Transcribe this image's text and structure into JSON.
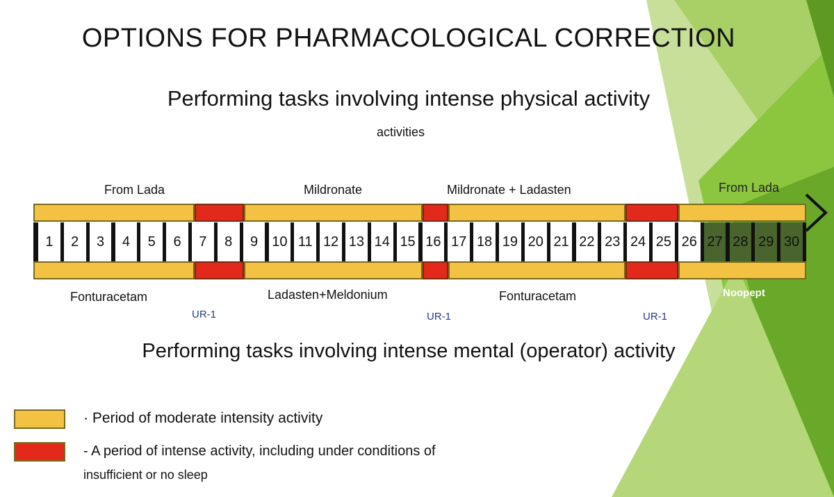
{
  "slide": {
    "title": "OPTIONS FOR PHARMACOLOGICAL CORRECTION",
    "physical_heading": "Performing tasks involving intense physical activity",
    "physical_subheading": "activities",
    "mental_heading": "Performing tasks involving intense mental (operator) activity"
  },
  "timeline": {
    "days": [
      "1",
      "2",
      "3",
      "4",
      "5",
      "6",
      "7",
      "8",
      "9",
      "10",
      "11",
      "12",
      "13",
      "14",
      "15",
      "16",
      "17",
      "18",
      "19",
      "20",
      "21",
      "22",
      "23",
      "24",
      "25",
      "26",
      "27",
      "28",
      "29",
      "30"
    ],
    "physical_labels": {
      "from_lada_left": "From Lada",
      "mildronate": "Mildronate",
      "mildronate_ladasten": "Mildronate + Ladasten",
      "from_lada_right": "From Lada"
    },
    "mental_labels": {
      "fonturacetam_left": "Fonturacetam",
      "ladasten_meldonium": "Ladasten+Meldonium",
      "fonturacetam_right": "Fonturacetam",
      "noopept": "Noopept"
    },
    "ur_labels": [
      "UR-1",
      "UR-1",
      "UR-1"
    ],
    "colors": {
      "moderate": "#f4c242",
      "intense": "#e3281c",
      "band_border": "#7a6a1a",
      "background_green": "#8cc63f"
    }
  },
  "legend": {
    "moderate_text": "· Period of moderate intensity activity",
    "intense_text_line1": "- A period of intense activity, including under conditions of",
    "intense_text_line2": "insufficient or no sleep"
  }
}
